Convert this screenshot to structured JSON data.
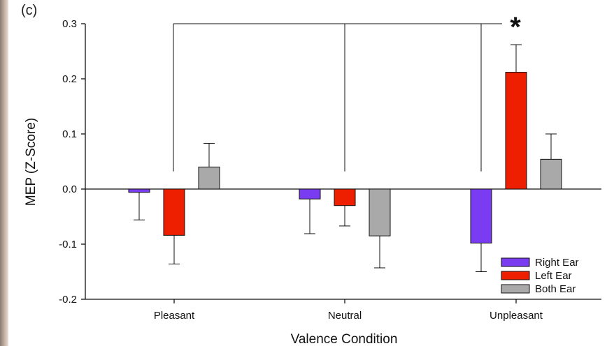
{
  "panel_label": "(c)",
  "chart_data": {
    "type": "bar",
    "title": "",
    "xlabel": "Valence Condition",
    "ylabel": "MEP (Z-Score)",
    "ylim": [
      -0.2,
      0.3
    ],
    "yticks": [
      "0.3",
      "0.2",
      "0.1",
      "0.0",
      "-0.1",
      "-0.2"
    ],
    "categories": [
      "Pleasant",
      "Neutral",
      "Unpleasant"
    ],
    "series": [
      {
        "name": "Right Ear",
        "color": "#7a3cf0",
        "values": [
          -0.006,
          -0.018,
          -0.098
        ],
        "errors": [
          0.05,
          0.063,
          0.052
        ]
      },
      {
        "name": "Left Ear",
        "color": "#ee1f00",
        "values": [
          -0.084,
          -0.03,
          0.212
        ],
        "errors": [
          0.052,
          0.037,
          0.05
        ]
      },
      {
        "name": "Both Ear",
        "color": "#a9a9a9",
        "values": [
          0.04,
          -0.085,
          0.054
        ],
        "errors": [
          0.043,
          0.058,
          0.046
        ]
      }
    ],
    "significance": "*",
    "legend_position": "bottom-right",
    "grid": false
  }
}
